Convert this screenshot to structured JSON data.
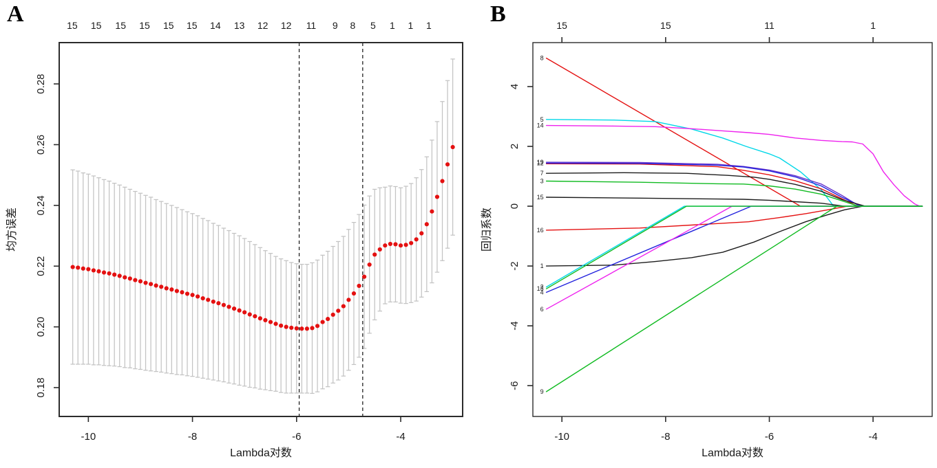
{
  "panel_letters": {
    "a": "A",
    "b": "B"
  },
  "chart_data": [
    {
      "id": "cv-curve",
      "type": "scatter",
      "title": "",
      "xlabel": "Lambda对数",
      "ylabel": "均方误差",
      "xlim": [
        -10.56,
        -2.81
      ],
      "ylim": [
        0.1705,
        0.2936
      ],
      "grid": false,
      "x_ticks": [
        {
          "v": -10,
          "label": "-10"
        },
        {
          "v": -8,
          "label": "-8"
        },
        {
          "v": -6,
          "label": "-6"
        },
        {
          "v": -4,
          "label": "-4"
        }
      ],
      "y_ticks": [
        {
          "v": 0.18,
          "label": "0.18"
        },
        {
          "v": 0.2,
          "label": "0.20"
        },
        {
          "v": 0.22,
          "label": "0.22"
        },
        {
          "v": 0.24,
          "label": "0.24"
        },
        {
          "v": 0.26,
          "label": "0.26"
        },
        {
          "v": 0.28,
          "label": "0.28"
        }
      ],
      "top_axis": {
        "draw_ticks": false,
        "items": [
          {
            "v": -10.31,
            "label": "15"
          },
          {
            "v": -9.85,
            "label": "15"
          },
          {
            "v": -9.38,
            "label": "15"
          },
          {
            "v": -8.92,
            "label": "15"
          },
          {
            "v": -8.46,
            "label": "15"
          },
          {
            "v": -8.01,
            "label": "15"
          },
          {
            "v": -7.56,
            "label": "14"
          },
          {
            "v": -7.1,
            "label": "13"
          },
          {
            "v": -6.65,
            "label": "12"
          },
          {
            "v": -6.2,
            "label": "12"
          },
          {
            "v": -5.72,
            "label": "11"
          },
          {
            "v": -5.26,
            "label": "9"
          },
          {
            "v": -4.92,
            "label": "8"
          },
          {
            "v": -4.53,
            "label": "5"
          },
          {
            "v": -4.16,
            "label": "1"
          },
          {
            "v": -3.81,
            "label": "1"
          },
          {
            "v": -3.46,
            "label": "1"
          }
        ]
      },
      "vlines": [
        {
          "v": -5.95,
          "name": "lambda-min"
        },
        {
          "v": -4.73,
          "name": "lambda-1se"
        }
      ],
      "colors": {
        "dot": "#e41111",
        "error_bar": "#c3c3c3",
        "dashed_line": "#222222",
        "box": "#2b2b2b"
      },
      "x": [
        -10.3,
        -10.2,
        -10.1,
        -10.0,
        -9.9,
        -9.8,
        -9.7,
        -9.6,
        -9.5,
        -9.4,
        -9.3,
        -9.2,
        -9.1,
        -9.0,
        -8.9,
        -8.8,
        -8.7,
        -8.6,
        -8.5,
        -8.4,
        -8.3,
        -8.2,
        -8.1,
        -8.0,
        -7.9,
        -7.8,
        -7.7,
        -7.6,
        -7.5,
        -7.4,
        -7.3,
        -7.2,
        -7.1,
        -7.0,
        -6.9,
        -6.8,
        -6.7,
        -6.6,
        -6.5,
        -6.4,
        -6.3,
        -6.2,
        -6.1,
        -6.0,
        -5.9,
        -5.8,
        -5.7,
        -5.6,
        -5.5,
        -5.4,
        -5.3,
        -5.2,
        -5.1,
        -5.0,
        -4.9,
        -4.8,
        -4.7,
        -4.6,
        -4.5,
        -4.4,
        -4.3,
        -4.2,
        -4.1,
        -4.0,
        -3.9,
        -3.8,
        -3.7,
        -3.6,
        -3.5,
        -3.4,
        -3.3,
        -3.2,
        -3.1,
        -3.0
      ],
      "y": [
        0.2197,
        0.2195,
        0.2192,
        0.219,
        0.2186,
        0.2183,
        0.2179,
        0.2176,
        0.2172,
        0.2168,
        0.2163,
        0.2159,
        0.2154,
        0.215,
        0.2145,
        0.2141,
        0.2136,
        0.2132,
        0.2127,
        0.2123,
        0.2118,
        0.2114,
        0.2109,
        0.2105,
        0.21,
        0.2094,
        0.2089,
        0.2083,
        0.2078,
        0.2072,
        0.2066,
        0.206,
        0.2054,
        0.2048,
        0.2041,
        0.2035,
        0.2028,
        0.2022,
        0.2016,
        0.201,
        0.2004,
        0.2,
        0.1997,
        0.1995,
        0.1994,
        0.1994,
        0.1996,
        0.2003,
        0.2016,
        0.2026,
        0.204,
        0.2053,
        0.2068,
        0.2089,
        0.211,
        0.2135,
        0.2165,
        0.2205,
        0.2238,
        0.2255,
        0.2268,
        0.2273,
        0.2272,
        0.2268,
        0.227,
        0.2276,
        0.2288,
        0.2308,
        0.2338,
        0.238,
        0.2428,
        0.248,
        0.2535,
        0.2592
      ],
      "err": [
        0.032,
        0.0318,
        0.0315,
        0.0313,
        0.0311,
        0.0308,
        0.0306,
        0.0304,
        0.0301,
        0.0299,
        0.0297,
        0.0294,
        0.0292,
        0.029,
        0.0288,
        0.0286,
        0.0283,
        0.0281,
        0.0279,
        0.0277,
        0.0275,
        0.0272,
        0.027,
        0.0268,
        0.0266,
        0.0263,
        0.0261,
        0.0258,
        0.0256,
        0.0253,
        0.0251,
        0.0248,
        0.0246,
        0.0243,
        0.024,
        0.0236,
        0.0233,
        0.0229,
        0.0226,
        0.0222,
        0.022,
        0.0218,
        0.0215,
        0.0213,
        0.0212,
        0.0212,
        0.0215,
        0.0217,
        0.022,
        0.0223,
        0.0225,
        0.0228,
        0.023,
        0.0232,
        0.0234,
        0.0235,
        0.0236,
        0.0226,
        0.0215,
        0.0203,
        0.0192,
        0.0191,
        0.019,
        0.019,
        0.0193,
        0.0196,
        0.0203,
        0.021,
        0.0222,
        0.0235,
        0.0248,
        0.0262,
        0.0276,
        0.029
      ]
    },
    {
      "id": "coefficient-paths",
      "type": "line",
      "title": "",
      "xlabel": "Lambda对数",
      "ylabel": "回归系数",
      "xlim": [
        -10.56,
        -2.86
      ],
      "ylim": [
        -7.03,
        5.47
      ],
      "grid": false,
      "x_ticks": [
        {
          "v": -10,
          "label": "-10"
        },
        {
          "v": -8,
          "label": "-8"
        },
        {
          "v": -6,
          "label": "-6"
        },
        {
          "v": -4,
          "label": "-4"
        }
      ],
      "y_ticks": [
        {
          "v": 4,
          "label": "4"
        },
        {
          "v": 2,
          "label": "2"
        },
        {
          "v": 0,
          "label": "0"
        },
        {
          "v": -2,
          "label": "-2"
        },
        {
          "v": -4,
          "label": "-4"
        },
        {
          "v": -6,
          "label": "-6"
        }
      ],
      "top_axis": {
        "draw_ticks": true,
        "items": [
          {
            "v": -10,
            "label": "15"
          },
          {
            "v": -8,
            "label": "15"
          },
          {
            "v": -6,
            "label": "11"
          },
          {
            "v": -4,
            "label": "1"
          }
        ]
      },
      "colors": {
        "box": "#2b2b2b"
      },
      "series": [
        {
          "label": "8",
          "color": "#e41111",
          "points": [
            [
              -10.3,
              4.95
            ],
            [
              -5.4,
              0
            ],
            [
              -3.05,
              0
            ]
          ]
        },
        {
          "label": "5",
          "color": "#00d7e8",
          "points": [
            [
              -10.3,
              2.9
            ],
            [
              -9.0,
              2.88
            ],
            [
              -8.2,
              2.83
            ],
            [
              -7.5,
              2.58
            ],
            [
              -6.9,
              2.28
            ],
            [
              -6.45,
              2.0
            ],
            [
              -6.0,
              1.75
            ],
            [
              -5.8,
              1.61
            ],
            [
              -5.4,
              1.15
            ],
            [
              -5.0,
              0.55
            ],
            [
              -4.76,
              0
            ],
            [
              -3.05,
              0
            ]
          ]
        },
        {
          "label": "14",
          "color": "#ee22ee",
          "points": [
            [
              -10.3,
              2.7
            ],
            [
              -9.0,
              2.68
            ],
            [
              -8.2,
              2.66
            ],
            [
              -7.5,
              2.59
            ],
            [
              -6.9,
              2.52
            ],
            [
              -6.4,
              2.46
            ],
            [
              -6.0,
              2.4
            ],
            [
              -5.5,
              2.28
            ],
            [
              -5.0,
              2.2
            ],
            [
              -4.6,
              2.16
            ],
            [
              -4.4,
              2.15
            ],
            [
              -4.2,
              2.08
            ],
            [
              -4.0,
              1.75
            ],
            [
              -3.8,
              1.15
            ],
            [
              -3.6,
              0.72
            ],
            [
              -3.4,
              0.35
            ],
            [
              -3.2,
              0.08
            ],
            [
              -3.1,
              0
            ],
            [
              -3.05,
              0
            ]
          ]
        },
        {
          "label": "",
          "color": "#e41111",
          "points": [
            [
              -10.3,
              1.42
            ],
            [
              -8.5,
              1.41
            ],
            [
              -7.0,
              1.32
            ],
            [
              -6.5,
              1.2
            ],
            [
              -6.0,
              1.05
            ],
            [
              -5.5,
              0.85
            ],
            [
              -5.0,
              0.58
            ],
            [
              -4.6,
              0.25
            ],
            [
              -4.3,
              0
            ],
            [
              -3.05,
              0
            ]
          ]
        },
        {
          "label": "19",
          "color": "#6633cc",
          "points": [
            [
              -10.3,
              1.47
            ],
            [
              -8.5,
              1.46
            ],
            [
              -7.0,
              1.4
            ],
            [
              -6.5,
              1.33
            ],
            [
              -6.0,
              1.21
            ],
            [
              -5.5,
              1.02
            ],
            [
              -5.0,
              0.74
            ],
            [
              -4.6,
              0.36
            ],
            [
              -4.26,
              0
            ],
            [
              -3.05,
              0
            ]
          ]
        },
        {
          "label": "12",
          "color": "#2222dd",
          "points": [
            [
              -10.3,
              1.44
            ],
            [
              -8.5,
              1.43
            ],
            [
              -7.0,
              1.37
            ],
            [
              -6.5,
              1.31
            ],
            [
              -6.0,
              1.18
            ],
            [
              -5.5,
              0.98
            ],
            [
              -5.0,
              0.68
            ],
            [
              -4.6,
              0.3
            ],
            [
              -4.22,
              0
            ],
            [
              -3.05,
              0
            ]
          ]
        },
        {
          "label": "7",
          "color": "#1c1c1c",
          "points": [
            [
              -10.3,
              1.1
            ],
            [
              -8.8,
              1.12
            ],
            [
              -7.6,
              1.1
            ],
            [
              -6.8,
              1.03
            ],
            [
              -6.3,
              0.97
            ],
            [
              -6.0,
              0.9
            ],
            [
              -5.5,
              0.73
            ],
            [
              -5.0,
              0.5
            ],
            [
              -4.6,
              0.22
            ],
            [
              -4.15,
              0
            ],
            [
              -3.05,
              0
            ]
          ]
        },
        {
          "label": "3",
          "color": "#10bb21",
          "points": [
            [
              -10.3,
              0.84
            ],
            [
              -8.5,
              0.8
            ],
            [
              -7.0,
              0.75
            ],
            [
              -6.5,
              0.74
            ],
            [
              -6.0,
              0.68
            ],
            [
              -5.5,
              0.57
            ],
            [
              -5.0,
              0.4
            ],
            [
              -4.6,
              0.18
            ],
            [
              -4.28,
              0
            ],
            [
              -3.05,
              0
            ]
          ]
        },
        {
          "label": "15",
          "color": "#1c1c1c",
          "points": [
            [
              -10.3,
              0.3
            ],
            [
              -8.5,
              0.27
            ],
            [
              -7.0,
              0.24
            ],
            [
              -6.5,
              0.23
            ],
            [
              -6.0,
              0.2
            ],
            [
              -5.5,
              0.15
            ],
            [
              -5.0,
              0.1
            ],
            [
              -4.55,
              0
            ],
            [
              -3.05,
              0
            ]
          ]
        },
        {
          "label": "16",
          "color": "#e41111",
          "points": [
            [
              -10.3,
              -0.8
            ],
            [
              -8.5,
              -0.73
            ],
            [
              -7.0,
              -0.58
            ],
            [
              -6.4,
              -0.52
            ],
            [
              -5.8,
              -0.38
            ],
            [
              -5.3,
              -0.25
            ],
            [
              -4.9,
              -0.13
            ],
            [
              -4.5,
              0
            ],
            [
              -3.05,
              0
            ]
          ]
        },
        {
          "label": "1",
          "color": "#1c1c1c",
          "points": [
            [
              -10.3,
              -2.0
            ],
            [
              -9.0,
              -1.97
            ],
            [
              -8.2,
              -1.85
            ],
            [
              -7.5,
              -1.72
            ],
            [
              -6.9,
              -1.54
            ],
            [
              -6.3,
              -1.2
            ],
            [
              -5.8,
              -0.85
            ],
            [
              -5.3,
              -0.52
            ],
            [
              -4.9,
              -0.3
            ],
            [
              -4.55,
              -0.12
            ],
            [
              -4.2,
              0
            ],
            [
              -3.05,
              0
            ]
          ]
        },
        {
          "label": "4",
          "color": "#2222dd",
          "points": [
            [
              -10.3,
              -2.88
            ],
            [
              -6.35,
              0
            ],
            [
              -3.05,
              0
            ]
          ]
        },
        {
          "label": "6",
          "color": "#ee22ee",
          "points": [
            [
              -10.3,
              -3.44
            ],
            [
              -6.72,
              0
            ],
            [
              -3.05,
              0
            ]
          ]
        },
        {
          "label": "2",
          "color": "#00d7e8",
          "points": [
            [
              -10.3,
              -2.7
            ],
            [
              -7.64,
              0
            ],
            [
              -3.05,
              0
            ]
          ]
        },
        {
          "label": "13",
          "color": "#10bb21",
          "points": [
            [
              -10.3,
              -2.76
            ],
            [
              -7.6,
              0
            ],
            [
              -3.05,
              0
            ]
          ]
        },
        {
          "label": "9",
          "color": "#10bb21",
          "points": [
            [
              -10.3,
              -6.2
            ],
            [
              -4.7,
              0
            ],
            [
              -3.05,
              0
            ]
          ]
        }
      ]
    }
  ]
}
